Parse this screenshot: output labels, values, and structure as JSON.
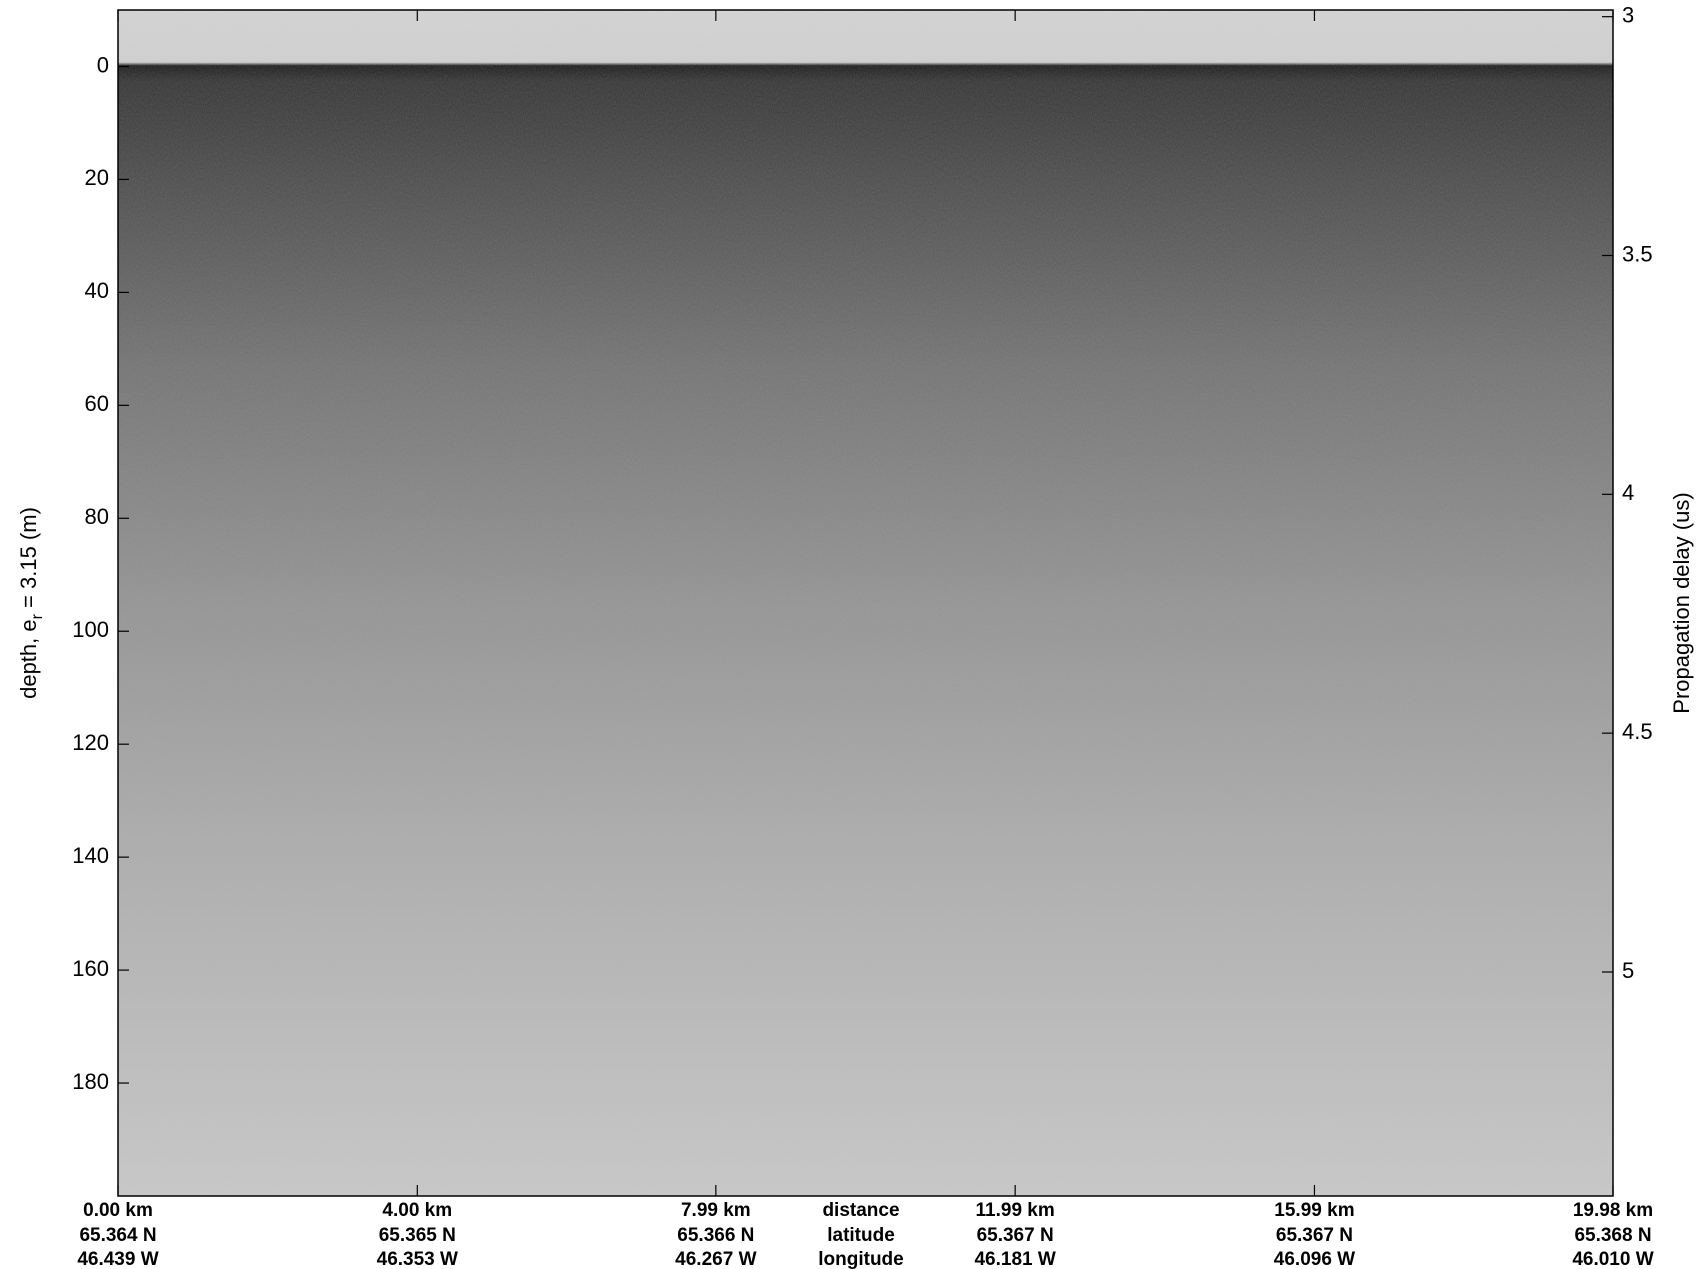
{
  "chart_data": {
    "type": "echogram",
    "ylabel": [
      "depth, e",
      "r",
      " = 3.15 (m)"
    ],
    "y2label": "Propagation delay (us)",
    "ylim": [
      -10,
      200
    ],
    "yticks": [
      0,
      20,
      40,
      60,
      80,
      100,
      120,
      140,
      160,
      180
    ],
    "y2lim": [
      2.986,
      5.469
    ],
    "y2ticks": [
      3,
      3.5,
      4,
      4.5,
      5
    ],
    "xlim": [
      0,
      19.98
    ],
    "xticks": [
      {
        "value": 0,
        "label": "0.00 km"
      },
      {
        "value": 4.0,
        "label": "4.00 km"
      },
      {
        "value": 7.99,
        "label": "7.99 km"
      },
      {
        "value": 11.99,
        "label": "11.99 km"
      },
      {
        "value": 15.99,
        "label": "15.99 km"
      },
      {
        "value": 19.98,
        "label": "19.98 km"
      }
    ],
    "latitude_labels": [
      "65.364 N",
      "65.365 N",
      "65.366 N",
      "65.367 N",
      "65.367 N",
      "65.368 N"
    ],
    "longitude_labels": [
      "46.439 W",
      "46.353 W",
      "46.267 W",
      "46.181 W",
      "46.096 W",
      "46.010 W"
    ],
    "x_row_titles": [
      "distance",
      "latitude",
      "longitude"
    ]
  }
}
